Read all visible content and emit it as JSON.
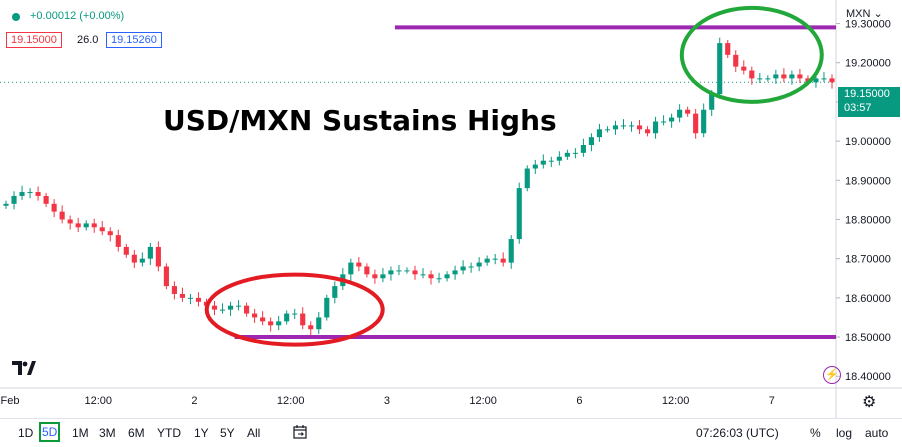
{
  "header": {
    "change_text": "+0.00012 (+0.00%)",
    "bid": "19.15000",
    "spread": "26.0",
    "ask": "19.15260",
    "currency": "MXN",
    "colors": {
      "up": "#089981",
      "down": "#f23645",
      "ask": "#2962ff"
    }
  },
  "headline": "USD/MXN Sustains Highs",
  "price_tag": {
    "price": "19.15000",
    "countdown": "03:57"
  },
  "bottom_bar": {
    "ranges": [
      "1D",
      "5D",
      "1M",
      "3M",
      "6M",
      "YTD",
      "1Y",
      "5Y",
      "All"
    ],
    "active_range": "5D",
    "time": "07:26:03 (UTC)",
    "percent": "%",
    "log": "log",
    "auto": "auto",
    "icons": [
      "calendar-range-icon",
      "gear-icon",
      "lightning-icon",
      "tradingview-logo-icon"
    ]
  },
  "chart_data": {
    "type": "line",
    "title": "USD/MXN Sustains Highs",
    "xlabel": "",
    "ylabel": "",
    "ylim": [
      18.37,
      19.36
    ],
    "y_ticks": [
      19.3,
      19.2,
      19.1,
      19.0,
      18.9,
      18.8,
      18.7,
      18.6,
      18.5,
      18.4
    ],
    "y_tick_labels": [
      "19.30000",
      "19.20000",
      "19.10000",
      "19.00000",
      "18.90000",
      "18.80000",
      "18.70000",
      "18.60000",
      "18.50000",
      "18.40000"
    ],
    "x_tick_labels": [
      "Feb",
      "12:00",
      "2",
      "12:00",
      "3",
      "12:00",
      "6",
      "12:00",
      "7"
    ],
    "x_tick_index": [
      0,
      12,
      24,
      36,
      48,
      60,
      72,
      84,
      96
    ],
    "x_max_index": 104,
    "grid": false,
    "series": [
      {
        "style": "candlestick",
        "values": [
          18.84,
          18.86,
          18.87,
          18.87,
          18.86,
          18.84,
          18.82,
          18.8,
          18.79,
          18.78,
          18.79,
          18.78,
          18.77,
          18.76,
          18.73,
          18.71,
          18.69,
          18.7,
          18.73,
          18.68,
          18.63,
          18.61,
          18.6,
          18.6,
          18.59,
          18.58,
          18.57,
          18.57,
          18.58,
          18.58,
          18.56,
          18.55,
          18.54,
          18.53,
          18.54,
          18.56,
          18.56,
          18.53,
          18.52,
          18.55,
          18.6,
          18.63,
          18.66,
          18.69,
          18.68,
          18.66,
          18.65,
          18.66,
          18.67,
          18.67,
          18.67,
          18.66,
          18.66,
          18.65,
          18.65,
          18.66,
          18.67,
          18.68,
          18.68,
          18.69,
          18.7,
          18.7,
          18.69,
          18.75,
          18.88,
          18.93,
          18.94,
          18.95,
          18.95,
          18.96,
          18.97,
          18.97,
          18.99,
          19.01,
          19.03,
          19.03,
          19.04,
          19.04,
          19.04,
          19.03,
          19.02,
          19.05,
          19.05,
          19.06,
          19.08,
          19.07,
          19.02,
          19.08,
          19.12,
          19.25,
          19.22,
          19.19,
          19.18,
          19.16,
          19.16,
          19.16,
          19.17,
          19.16,
          19.17,
          19.16,
          19.15,
          19.16,
          19.16,
          19.15
        ]
      }
    ],
    "horizontal_lines": [
      {
        "name": "resistance",
        "value": 19.29,
        "from_index": 49,
        "color": "#9c27b0"
      },
      {
        "name": "support",
        "value": 18.5,
        "from_index": 29,
        "color": "#9c27b0"
      }
    ],
    "current_price_line": 19.15,
    "annotations": [
      {
        "shape": "ellipse",
        "center_index": 36,
        "center_value": 18.57,
        "color": "#e31b23"
      },
      {
        "shape": "ellipse",
        "center_index": 93,
        "center_value": 19.22,
        "color": "#22a83a"
      }
    ]
  }
}
